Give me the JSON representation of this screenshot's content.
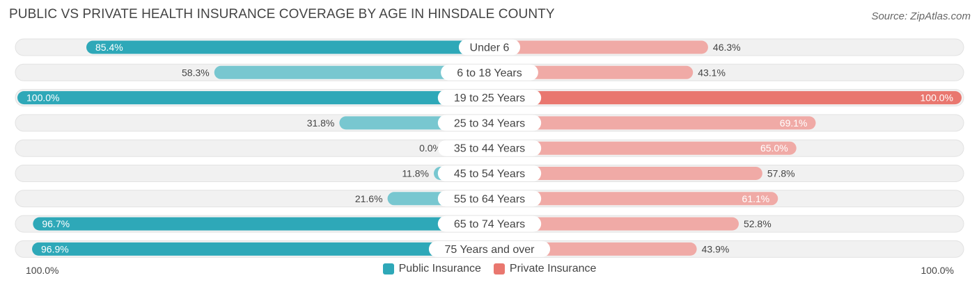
{
  "header": {
    "title": "PUBLIC VS PRIVATE HEALTH INSURANCE COVERAGE BY AGE IN HINSDALE COUNTY",
    "source": "Source: ZipAtlas.com"
  },
  "colors": {
    "public": "#2ea8b8",
    "public_light": "#78c7d0",
    "private": "#e9776f",
    "private_light": "#f0aaa6",
    "track": "#f1f1f1"
  },
  "chart_data": {
    "type": "bar",
    "orientation": "diverging-horizontal",
    "title": "PUBLIC VS PRIVATE HEALTH INSURANCE COVERAGE BY AGE IN HINSDALE COUNTY",
    "categories": [
      "Under 6",
      "6 to 18 Years",
      "19 to 25 Years",
      "25 to 34 Years",
      "35 to 44 Years",
      "45 to 54 Years",
      "55 to 64 Years",
      "65 to 74 Years",
      "75 Years and over"
    ],
    "series": [
      {
        "name": "Public Insurance",
        "values": [
          85.4,
          58.3,
          100.0,
          31.8,
          0.0,
          11.8,
          21.6,
          96.7,
          96.9
        ],
        "labels": [
          "85.4%",
          "58.3%",
          "100.0%",
          "31.8%",
          "0.0%",
          "11.8%",
          "21.6%",
          "96.7%",
          "96.9%"
        ]
      },
      {
        "name": "Private Insurance",
        "values": [
          46.3,
          43.1,
          100.0,
          69.1,
          65.0,
          57.8,
          61.1,
          52.8,
          43.9
        ],
        "labels": [
          "46.3%",
          "43.1%",
          "100.0%",
          "69.1%",
          "65.0%",
          "57.8%",
          "61.1%",
          "52.8%",
          "43.9%"
        ]
      }
    ],
    "xlim": [
      0,
      100
    ],
    "axis_labels": {
      "left": "100.0%",
      "right": "100.0%"
    },
    "legend": [
      "Public Insurance",
      "Private Insurance"
    ],
    "legend_position": "bottom-center"
  }
}
